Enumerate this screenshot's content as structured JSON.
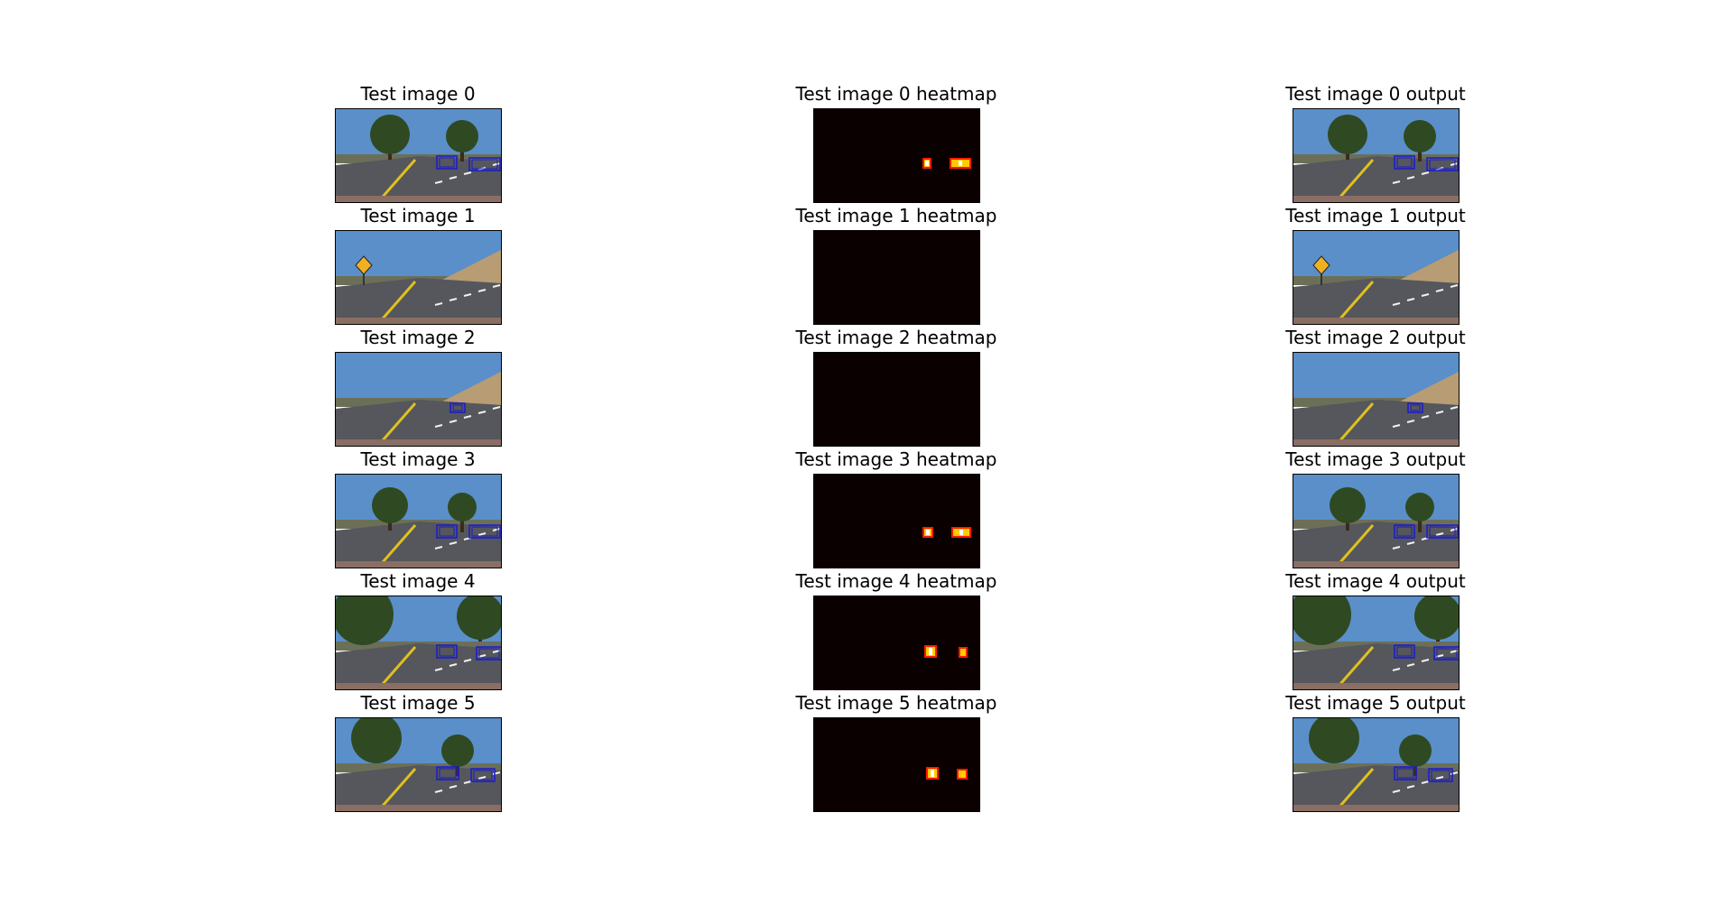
{
  "panels": [
    {
      "original": "Test image 0",
      "heatmap": "Test image 0 heatmap",
      "output": "Test image 0 output"
    },
    {
      "original": "Test image 1",
      "heatmap": "Test image 1 heatmap",
      "output": "Test image 1 output"
    },
    {
      "original": "Test image 2",
      "heatmap": "Test image 2 heatmap",
      "output": "Test image 2 output"
    },
    {
      "original": "Test image 3",
      "heatmap": "Test image 3 heatmap",
      "output": "Test image 3 output"
    },
    {
      "original": "Test image 4",
      "heatmap": "Test image 4 heatmap",
      "output": "Test image 4 output"
    },
    {
      "original": "Test image 5",
      "heatmap": "Test image 5 heatmap",
      "output": "Test image 5 output"
    }
  ],
  "colors": {
    "sky": "#5a8fc9",
    "road": "#55575c",
    "heatmap_bg": "#0b0000",
    "hot_low": "#ff1a00",
    "hot_high": "#ffffff",
    "box": "#1a1acc"
  }
}
